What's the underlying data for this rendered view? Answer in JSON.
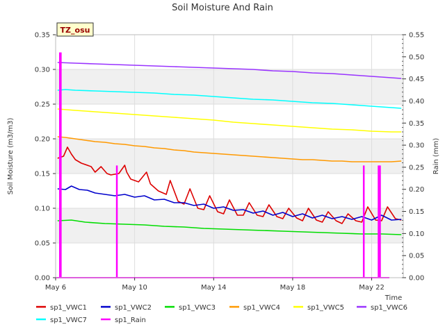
{
  "chart_data": {
    "type": "line",
    "title": "Soil Moisture And Rain",
    "xlabel": "Time",
    "ylabel": "Soil Moisture (m3/m3)",
    "y2label": "Rain (mm)",
    "station_label": "TZ_osu",
    "x_range": [
      "2024-05-06",
      "2024-05-23.6"
    ],
    "x_ticks": [
      "May 6",
      "May 10",
      "May 14",
      "May 18",
      "May 22"
    ],
    "x_tick_values": [
      0,
      4,
      8,
      12,
      16
    ],
    "x_start": 0,
    "x_end": 17.6,
    "ylim": [
      0,
      0.35
    ],
    "y_ticks": [
      "0.00",
      "0.05",
      "0.10",
      "0.15",
      "0.20",
      "0.25",
      "0.30",
      "0.35"
    ],
    "y2lim": [
      0,
      0.55
    ],
    "y2_ticks": [
      "0.00",
      "0.05",
      "0.10",
      "0.15",
      "0.20",
      "0.25",
      "0.30",
      "0.35",
      "0.40",
      "0.45",
      "0.50",
      "0.55"
    ],
    "grid": true,
    "legend_position": "bottom",
    "series": [
      {
        "name": "sp1_VWC1",
        "color": "#dd0000",
        "x": [
          0.1,
          0.4,
          0.6,
          0.8,
          1.0,
          1.3,
          1.8,
          2.0,
          2.3,
          2.6,
          2.8,
          3.2,
          3.5,
          3.6,
          3.8,
          4.2,
          4.6,
          4.8,
          5.2,
          5.6,
          5.8,
          6.2,
          6.5,
          6.8,
          7.2,
          7.5,
          7.8,
          8.2,
          8.5,
          8.8,
          9.2,
          9.5,
          9.8,
          10.2,
          10.5,
          10.8,
          11.2,
          11.5,
          11.8,
          12.2,
          12.5,
          12.8,
          13.2,
          13.5,
          13.8,
          14.2,
          14.5,
          14.8,
          15.2,
          15.5,
          15.8,
          16.2,
          16.5,
          16.8,
          17.2,
          17.5
        ],
        "y": [
          0.172,
          0.175,
          0.188,
          0.178,
          0.17,
          0.165,
          0.16,
          0.152,
          0.16,
          0.15,
          0.148,
          0.15,
          0.162,
          0.152,
          0.142,
          0.138,
          0.152,
          0.135,
          0.125,
          0.12,
          0.14,
          0.11,
          0.106,
          0.128,
          0.1,
          0.098,
          0.118,
          0.095,
          0.092,
          0.112,
          0.09,
          0.09,
          0.108,
          0.09,
          0.088,
          0.105,
          0.088,
          0.085,
          0.1,
          0.086,
          0.082,
          0.1,
          0.083,
          0.08,
          0.095,
          0.082,
          0.078,
          0.092,
          0.082,
          0.08,
          0.102,
          0.083,
          0.082,
          0.102,
          0.085,
          0.083
        ]
      },
      {
        "name": "sp1_VWC2",
        "color": "#0000cc",
        "x": [
          0.1,
          0.5,
          0.8,
          1.2,
          1.6,
          2.0,
          2.5,
          3.0,
          3.5,
          4.0,
          4.5,
          5.0,
          5.5,
          6.0,
          6.5,
          7.0,
          7.5,
          8.0,
          8.5,
          9.0,
          9.5,
          10.0,
          10.5,
          11.0,
          11.5,
          12.0,
          12.5,
          13.0,
          13.5,
          14.0,
          14.5,
          15.0,
          15.5,
          16.0,
          16.5,
          17.0,
          17.5
        ],
        "y": [
          0.128,
          0.127,
          0.132,
          0.127,
          0.126,
          0.122,
          0.12,
          0.118,
          0.12,
          0.116,
          0.118,
          0.112,
          0.113,
          0.108,
          0.108,
          0.104,
          0.106,
          0.1,
          0.102,
          0.097,
          0.098,
          0.093,
          0.096,
          0.09,
          0.094,
          0.088,
          0.092,
          0.086,
          0.09,
          0.085,
          0.088,
          0.084,
          0.088,
          0.083,
          0.09,
          0.083,
          0.084
        ]
      },
      {
        "name": "sp1_VWC3",
        "color": "#00dd00",
        "x": [
          0.1,
          0.8,
          1.5,
          2.5,
          3.5,
          4.5,
          5.5,
          6.5,
          7.5,
          8.5,
          9.5,
          10.5,
          11.5,
          12.5,
          13.5,
          14.5,
          15.5,
          16.5,
          17.5
        ],
        "y": [
          0.082,
          0.083,
          0.08,
          0.078,
          0.077,
          0.076,
          0.074,
          0.073,
          0.071,
          0.07,
          0.069,
          0.068,
          0.067,
          0.066,
          0.065,
          0.064,
          0.063,
          0.063,
          0.062
        ]
      },
      {
        "name": "sp1_VWC4",
        "color": "#ff9900",
        "x": [
          0.1,
          0.5,
          1.0,
          1.5,
          2.0,
          2.5,
          3.0,
          3.5,
          4.0,
          4.5,
          5.0,
          5.5,
          6.0,
          6.5,
          7.0,
          7.5,
          8.0,
          8.5,
          9.0,
          9.5,
          10.0,
          10.5,
          11.0,
          11.5,
          12.0,
          12.5,
          13.0,
          13.5,
          14.0,
          14.5,
          15.0,
          15.5,
          16.0,
          16.5,
          17.0,
          17.5
        ],
        "y": [
          0.203,
          0.202,
          0.2,
          0.198,
          0.196,
          0.195,
          0.193,
          0.192,
          0.19,
          0.189,
          0.187,
          0.186,
          0.184,
          0.183,
          0.181,
          0.18,
          0.179,
          0.178,
          0.177,
          0.176,
          0.175,
          0.174,
          0.173,
          0.172,
          0.171,
          0.17,
          0.17,
          0.169,
          0.168,
          0.168,
          0.167,
          0.167,
          0.167,
          0.167,
          0.167,
          0.168
        ]
      },
      {
        "name": "sp1_VWC5",
        "color": "#ffff00",
        "x": [
          0.1,
          1.0,
          2.0,
          3.0,
          4.0,
          5.0,
          6.0,
          7.0,
          8.0,
          9.0,
          10.0,
          11.0,
          12.0,
          13.0,
          14.0,
          15.0,
          16.0,
          17.0,
          17.5
        ],
        "y": [
          0.243,
          0.241,
          0.239,
          0.237,
          0.235,
          0.233,
          0.231,
          0.229,
          0.227,
          0.224,
          0.222,
          0.22,
          0.218,
          0.216,
          0.214,
          0.213,
          0.211,
          0.21,
          0.21
        ]
      },
      {
        "name": "sp1_VWC6",
        "color": "#9933ff",
        "x": [
          0.1,
          1.0,
          2.0,
          3.0,
          4.0,
          5.0,
          6.0,
          7.0,
          8.0,
          9.0,
          10.0,
          11.0,
          12.0,
          13.0,
          14.0,
          15.0,
          16.0,
          17.0,
          17.5
        ],
        "y": [
          0.31,
          0.309,
          0.308,
          0.307,
          0.306,
          0.305,
          0.304,
          0.303,
          0.302,
          0.301,
          0.3,
          0.298,
          0.297,
          0.295,
          0.294,
          0.292,
          0.29,
          0.288,
          0.287
        ]
      },
      {
        "name": "sp1_VWC7",
        "color": "#00ffff",
        "x": [
          0.1,
          0.5,
          1.0,
          2.0,
          3.0,
          4.0,
          5.0,
          6.0,
          7.0,
          8.0,
          9.0,
          10.0,
          11.0,
          12.0,
          13.0,
          14.0,
          15.0,
          16.0,
          17.0,
          17.5
        ],
        "y": [
          0.27,
          0.271,
          0.27,
          0.269,
          0.268,
          0.267,
          0.266,
          0.264,
          0.263,
          0.261,
          0.259,
          0.257,
          0.256,
          0.254,
          0.252,
          0.251,
          0.249,
          0.247,
          0.245,
          0.244
        ]
      },
      {
        "name": "sp1_Rain",
        "color": "#ff00ff",
        "axis": "y2",
        "x": [
          0.22,
          0.26,
          3.1,
          15.6,
          16.35,
          16.42
        ],
        "y": [
          0.51,
          0.51,
          0.254,
          0.254,
          0.254,
          0.254
        ]
      }
    ]
  }
}
